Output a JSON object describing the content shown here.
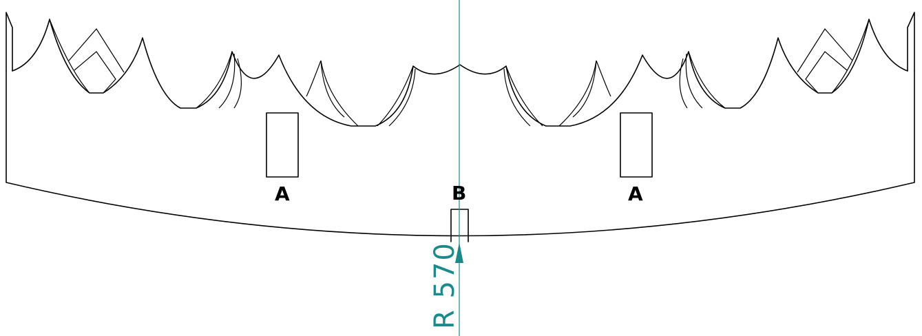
{
  "labels": {
    "slot_left": "A",
    "slot_center": "B",
    "slot_right": "A"
  },
  "dimension": {
    "text": "R 570"
  },
  "colors": {
    "outline": "#000000",
    "dimension": "#1a8a8a",
    "background": "#ffffff"
  }
}
